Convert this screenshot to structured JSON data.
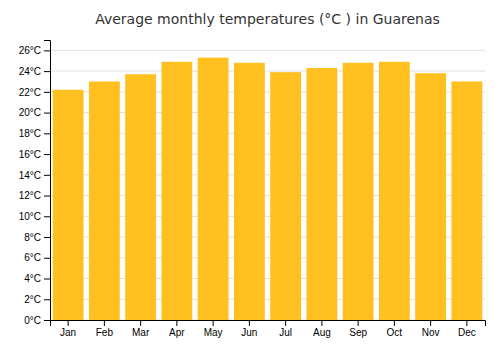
{
  "chart_data": {
    "type": "bar",
    "title": "Average monthly temperatures (°C ) in Guarenas",
    "categories": [
      "Jan",
      "Feb",
      "Mar",
      "Apr",
      "May",
      "Jun",
      "Jul",
      "Aug",
      "Sep",
      "Oct",
      "Nov",
      "Dec"
    ],
    "values": [
      22.2,
      23.0,
      23.7,
      24.9,
      25.3,
      24.8,
      23.9,
      24.3,
      24.8,
      24.9,
      23.8,
      23.0
    ],
    "color": "#FFC020",
    "ylim": [
      0,
      27
    ],
    "yticks": [
      {
        "value": 0,
        "label": "0°C"
      },
      {
        "value": 2,
        "label": "2°C"
      },
      {
        "value": 4,
        "label": "4°C"
      },
      {
        "value": 6,
        "label": "6°C"
      },
      {
        "value": 8,
        "label": "8°C"
      },
      {
        "value": 10,
        "label": "10°C"
      },
      {
        "value": 12,
        "label": "12°C"
      },
      {
        "value": 14,
        "label": "14°C"
      },
      {
        "value": 16,
        "label": "16°C"
      },
      {
        "value": 18,
        "label": "18°C"
      },
      {
        "value": 20,
        "label": "20°C"
      },
      {
        "value": 22,
        "label": "22°C"
      },
      {
        "value": 24,
        "label": "24°C"
      },
      {
        "value": 26,
        "label": "26°C"
      }
    ],
    "grid": true
  }
}
